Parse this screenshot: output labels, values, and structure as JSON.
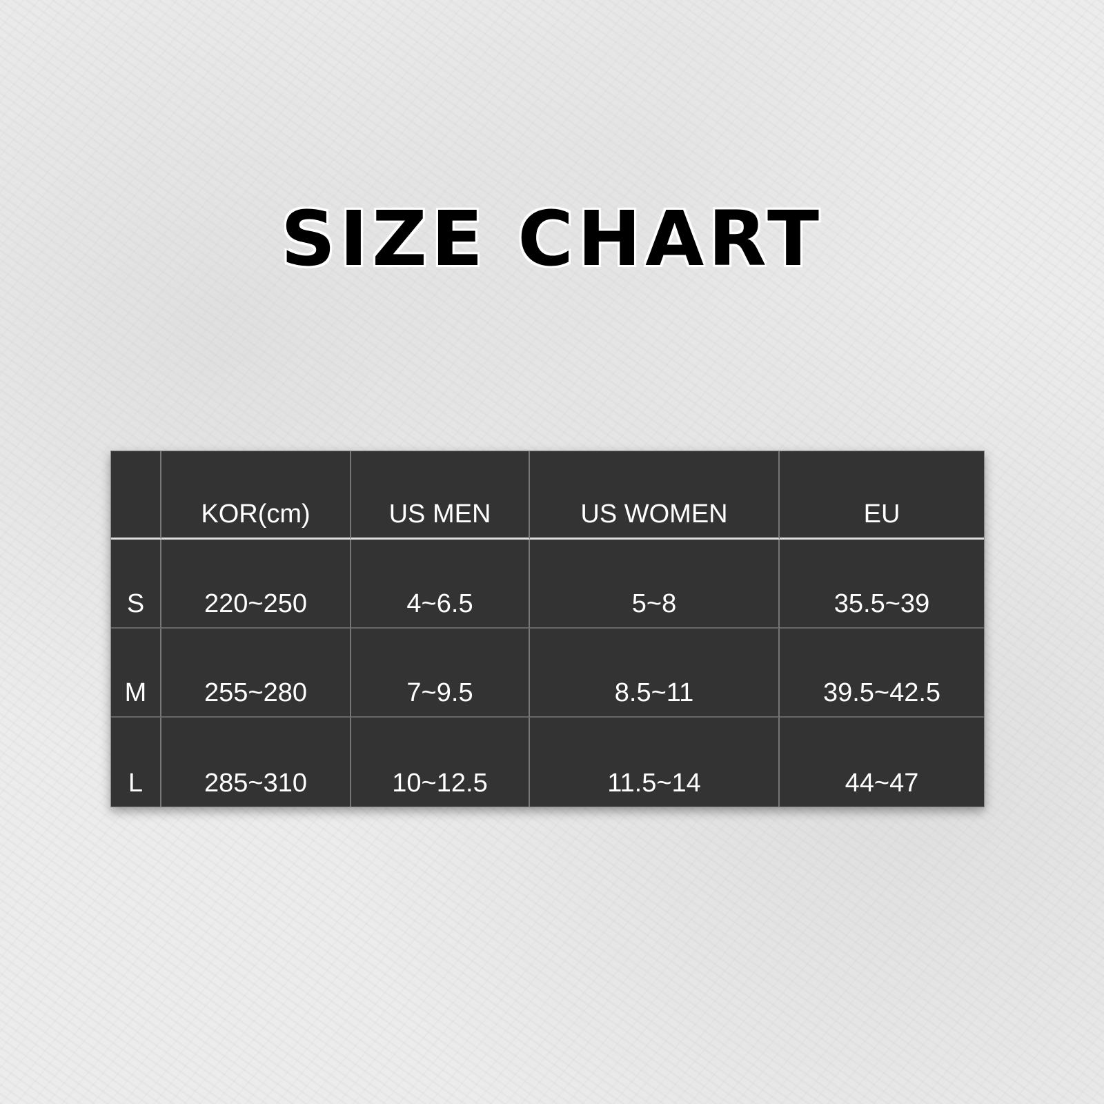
{
  "title": "SIZE CHART",
  "table": {
    "headers": [
      "",
      "KOR(cm)",
      "US MEN",
      "US WOMEN",
      "EU"
    ],
    "rows": [
      [
        "S",
        "220~250",
        "4~6.5",
        "5~8",
        "35.5~39"
      ],
      [
        "M",
        "255~280",
        "7~9.5",
        "8.5~11",
        "39.5~42.5"
      ],
      [
        "L",
        "285~310",
        "10~12.5",
        "11.5~14",
        "44~47"
      ]
    ]
  },
  "colors": {
    "table_bg": "#333333",
    "text": "#ffffff",
    "title": "#000000"
  }
}
